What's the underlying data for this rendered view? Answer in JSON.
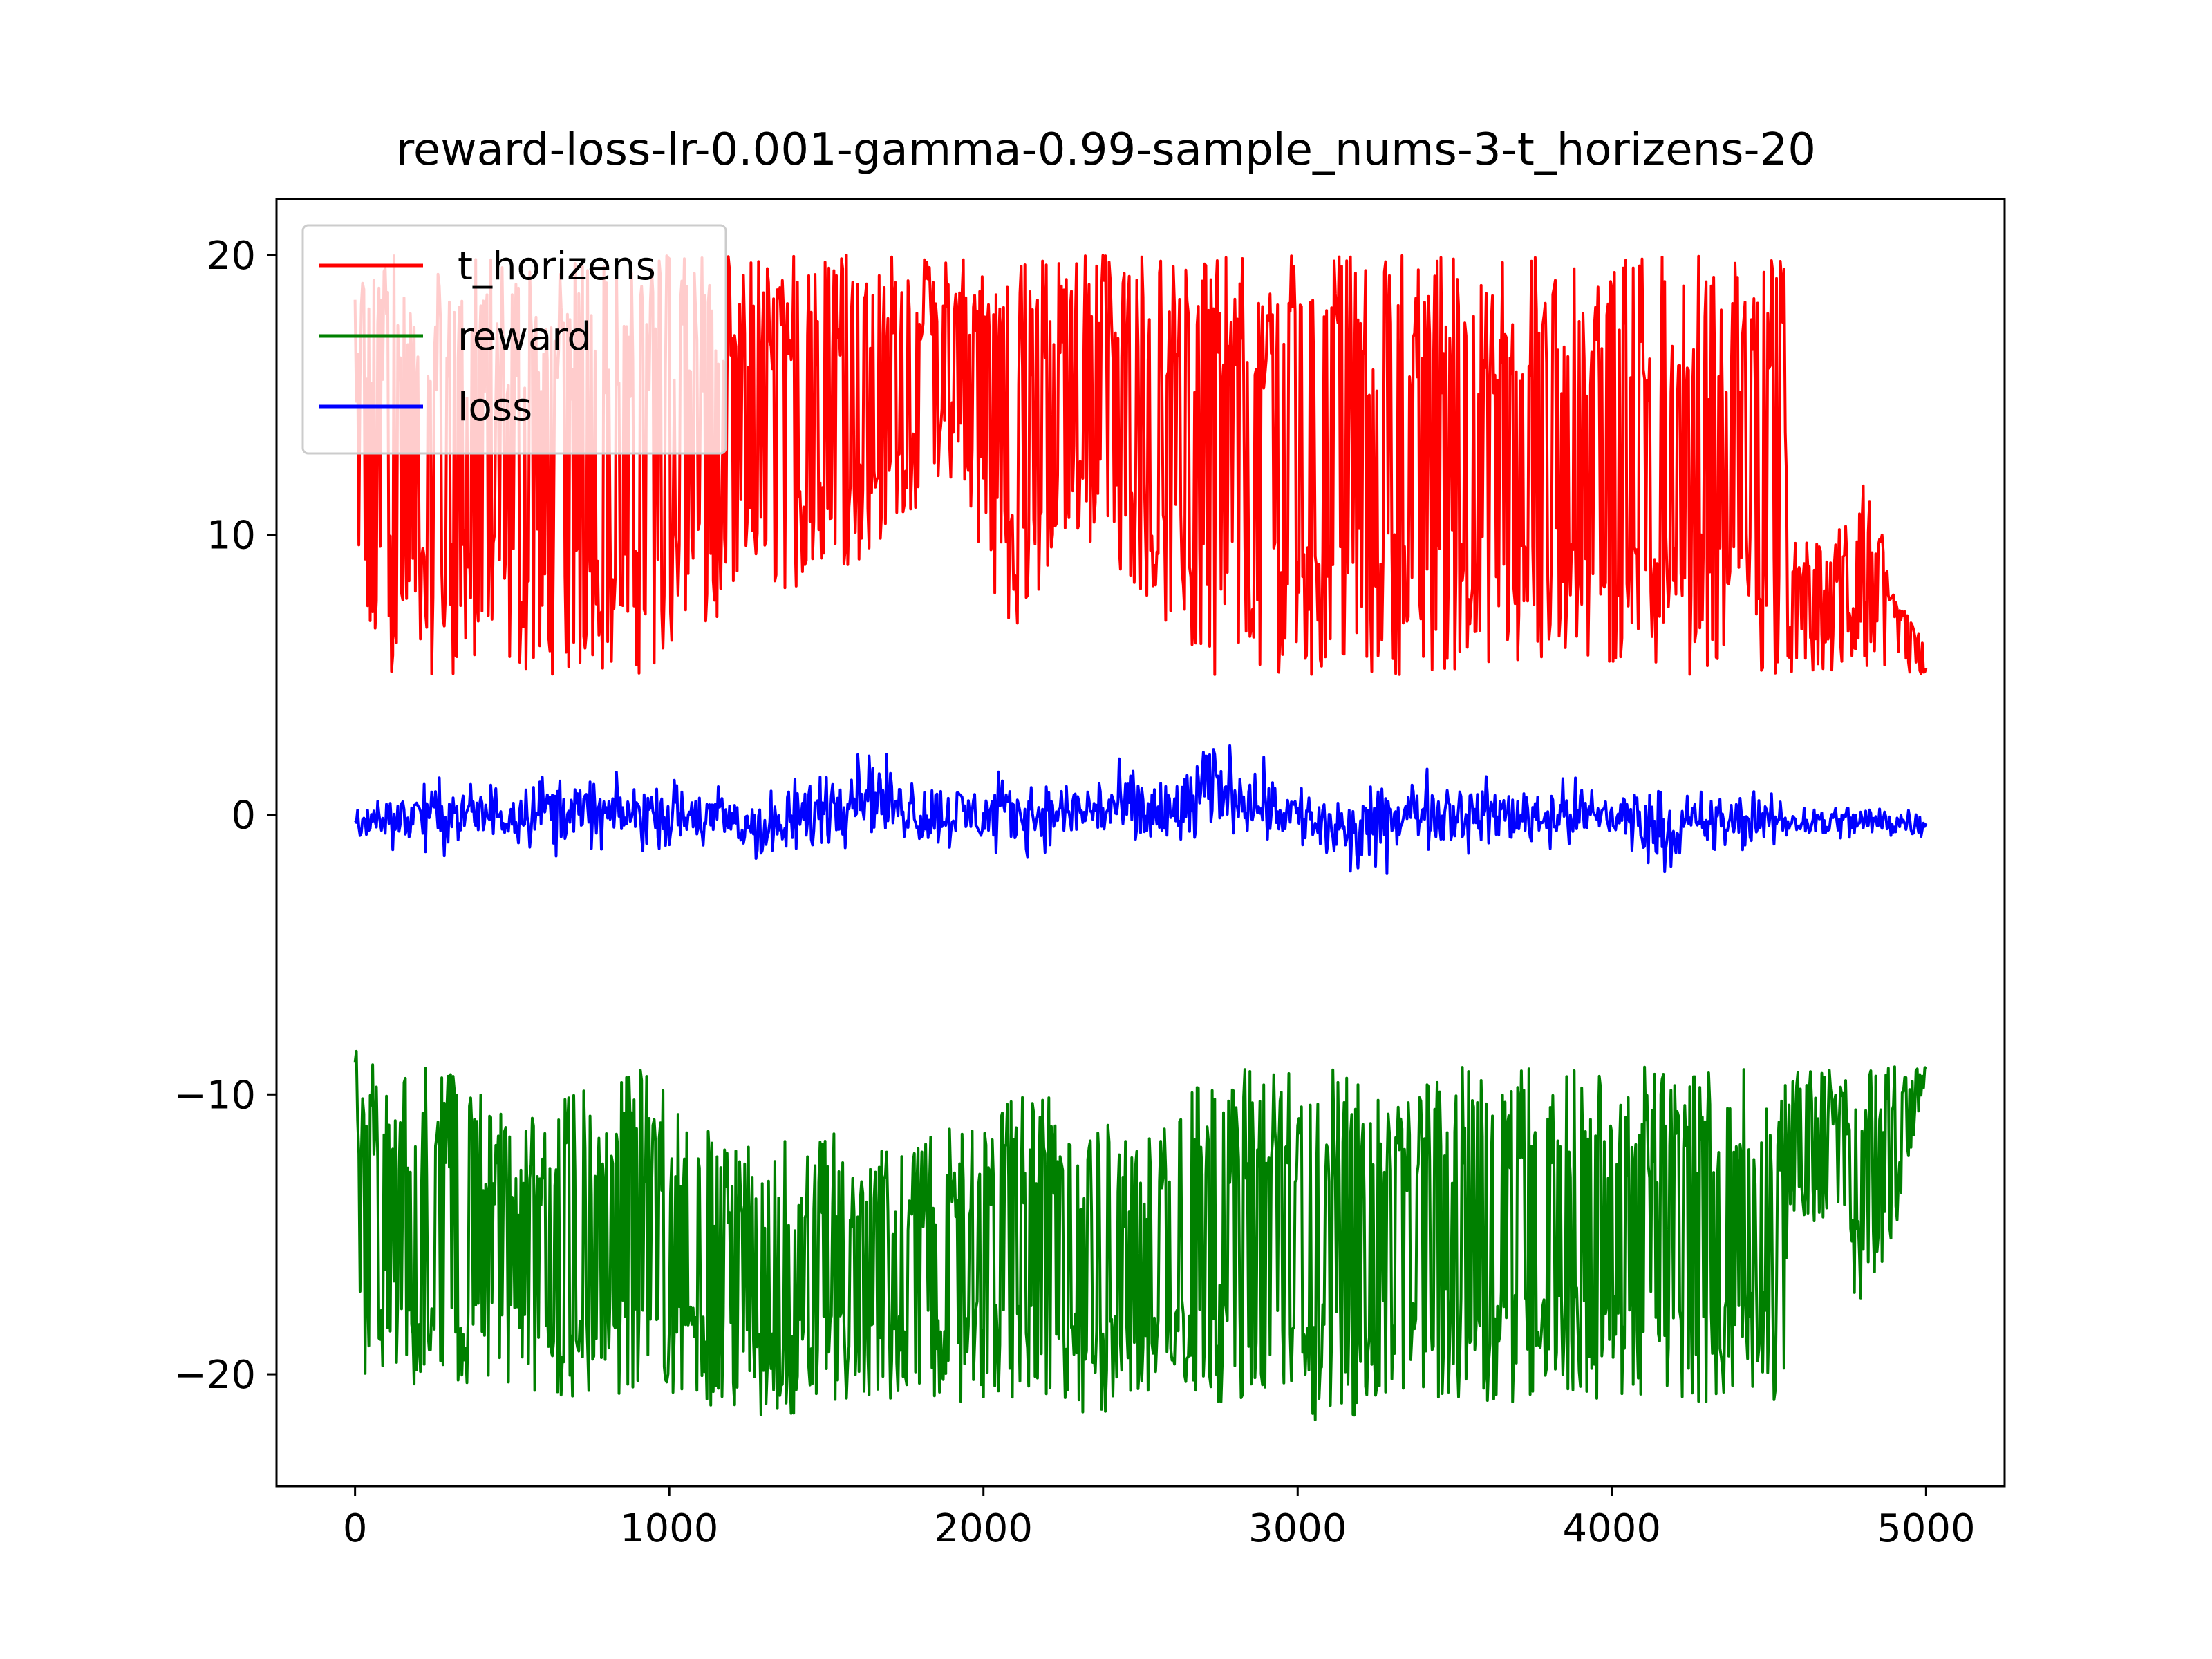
{
  "chart_data": {
    "type": "line",
    "title": "reward-loss-lr-0.001-gamma-0.99-sample_nums-3-t_horizens-20",
    "xlabel": "",
    "ylabel": "",
    "xlim": [
      -250,
      5250
    ],
    "ylim": [
      -24,
      22
    ],
    "xticks": [
      0,
      1000,
      2000,
      3000,
      4000,
      5000
    ],
    "xtick_labels": [
      "0",
      "1000",
      "2000",
      "3000",
      "4000",
      "5000"
    ],
    "yticks": [
      -20,
      -10,
      0,
      10,
      20
    ],
    "ytick_labels": [
      "−20",
      "−10",
      "0",
      "10",
      "20"
    ],
    "grid": false,
    "legend": {
      "placement": "upper-left"
    },
    "x": {
      "start": 0,
      "end": 5000,
      "step": 1
    },
    "series": [
      {
        "name": "t_horizens",
        "color": "#ff0000",
        "envelope": [
          [
            0,
            5,
            20
          ],
          [
            100,
            5,
            20
          ],
          [
            200,
            5,
            20
          ],
          [
            300,
            5,
            20
          ],
          [
            400,
            5,
            20
          ],
          [
            500,
            5,
            20
          ],
          [
            700,
            5,
            20
          ],
          [
            900,
            5,
            20
          ],
          [
            1100,
            6,
            20
          ],
          [
            1300,
            8,
            20
          ],
          [
            1500,
            8,
            20
          ],
          [
            1700,
            10,
            20
          ],
          [
            1900,
            12,
            20
          ],
          [
            2100,
            6,
            20
          ],
          [
            2300,
            10,
            20
          ],
          [
            2500,
            8,
            20
          ],
          [
            2700,
            5,
            20
          ],
          [
            2900,
            5,
            20
          ],
          [
            3100,
            5,
            20
          ],
          [
            3300,
            5,
            20
          ],
          [
            3500,
            5,
            20
          ],
          [
            3700,
            5,
            20
          ],
          [
            3900,
            5,
            20
          ],
          [
            4100,
            5,
            20
          ],
          [
            4300,
            5,
            20
          ],
          [
            4500,
            5,
            20
          ],
          [
            4550,
            5,
            20
          ],
          [
            4560,
            5,
            10
          ],
          [
            4700,
            5,
            9.5
          ],
          [
            4800,
            5,
            13
          ],
          [
            4900,
            5,
            8
          ],
          [
            5000,
            5,
            6
          ]
        ]
      },
      {
        "name": "reward",
        "color": "#008000",
        "envelope": [
          [
            0,
            -21,
            -8
          ],
          [
            100,
            -20,
            -9
          ],
          [
            200,
            -21,
            -9
          ],
          [
            300,
            -22,
            -9
          ],
          [
            400,
            -21,
            -10
          ],
          [
            500,
            -21,
            -11
          ],
          [
            700,
            -21,
            -10
          ],
          [
            900,
            -21,
            -9
          ],
          [
            1100,
            -21,
            -11
          ],
          [
            1300,
            -22,
            -12
          ],
          [
            1500,
            -21,
            -11
          ],
          [
            1700,
            -21,
            -12
          ],
          [
            1900,
            -21,
            -11
          ],
          [
            2100,
            -21,
            -10
          ],
          [
            2300,
            -22,
            -10
          ],
          [
            2500,
            -21,
            -12
          ],
          [
            2700,
            -21,
            -9
          ],
          [
            2900,
            -21,
            -9
          ],
          [
            3100,
            -22,
            -9
          ],
          [
            3300,
            -21,
            -10
          ],
          [
            3500,
            -21,
            -9
          ],
          [
            3700,
            -21,
            -9
          ],
          [
            3900,
            -21,
            -9
          ],
          [
            4100,
            -21,
            -9
          ],
          [
            4300,
            -21,
            -9
          ],
          [
            4500,
            -21,
            -9
          ],
          [
            4550,
            -21,
            -9
          ],
          [
            4560,
            -14,
            -9
          ],
          [
            4700,
            -15,
            -9
          ],
          [
            4800,
            -18,
            -9
          ],
          [
            4900,
            -15,
            -9
          ],
          [
            5000,
            -9.5,
            -9
          ]
        ]
      },
      {
        "name": "loss",
        "color": "#0000ff",
        "envelope": [
          [
            0,
            -2,
            1.5
          ],
          [
            200,
            -3,
            3
          ],
          [
            400,
            -3,
            3
          ],
          [
            600,
            -3,
            3.5
          ],
          [
            800,
            -3,
            3
          ],
          [
            1000,
            -3,
            3
          ],
          [
            1200,
            -3.5,
            3
          ],
          [
            1340,
            -4.3,
            3
          ],
          [
            1600,
            -3,
            4.9
          ],
          [
            1800,
            -3,
            3
          ],
          [
            2000,
            -3,
            3
          ],
          [
            2200,
            -3,
            3
          ],
          [
            2400,
            -3,
            3.5
          ],
          [
            2600,
            -4.7,
            4.5
          ],
          [
            2750,
            -3,
            5.2
          ],
          [
            3000,
            -3,
            3
          ],
          [
            3170,
            -4.8,
            3
          ],
          [
            3400,
            -3,
            3.5
          ],
          [
            3600,
            -3,
            3
          ],
          [
            3800,
            -3,
            3
          ],
          [
            4000,
            -3,
            3
          ],
          [
            4200,
            -4,
            3
          ],
          [
            4400,
            -3,
            2.5
          ],
          [
            4600,
            -2,
            1.5
          ],
          [
            4800,
            -2,
            1.5
          ],
          [
            5000,
            -1.5,
            1
          ]
        ]
      }
    ]
  }
}
